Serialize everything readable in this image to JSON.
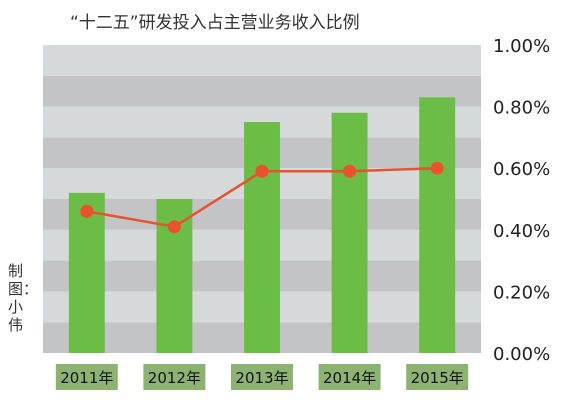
{
  "title": "“十二五”研发投入占主营业务收入比例",
  "credit": "制图：小伟",
  "colors": {
    "bar": "#6cbd45",
    "line": "#e8522c",
    "band_dark": "#c3c4c6",
    "band_light": "#d6d9d9",
    "category_box": "#8db272"
  },
  "chart_data": {
    "type": "bar",
    "categories": [
      "2011年",
      "2012年",
      "2013年",
      "2014年",
      "2015年"
    ],
    "ylim": [
      0,
      1.0
    ],
    "yticks": [
      "0.00%",
      "0.20%",
      "0.40%",
      "0.60%",
      "0.80%",
      "1.00%"
    ],
    "ytick_values": [
      0,
      0.2,
      0.4,
      0.6,
      0.8,
      1.0
    ],
    "grid": "alternating horizontal bands",
    "series": [
      {
        "kind": "bar",
        "values": [
          0.52,
          0.5,
          0.75,
          0.78,
          0.83
        ]
      },
      {
        "kind": "line",
        "values": [
          0.46,
          0.41,
          0.59,
          0.59,
          0.6
        ]
      }
    ]
  }
}
